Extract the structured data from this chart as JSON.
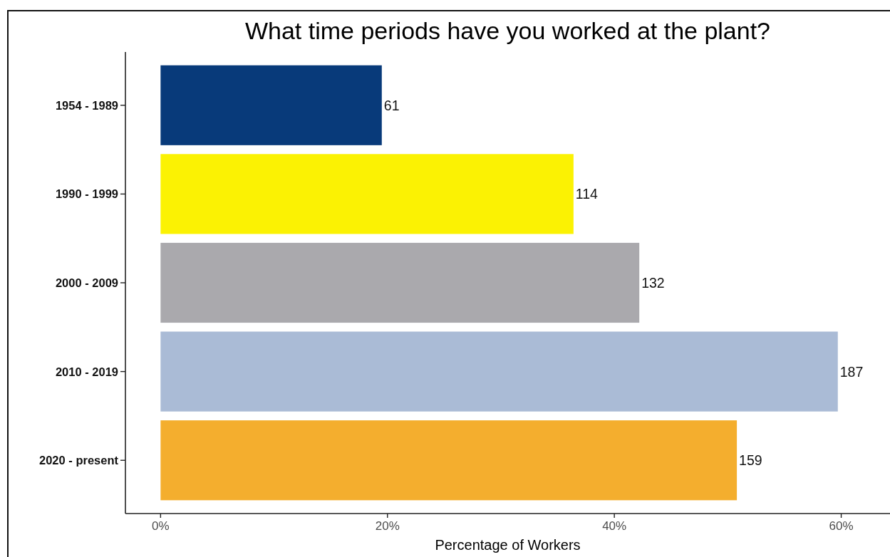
{
  "chart_data": {
    "type": "bar",
    "orientation": "horizontal",
    "title": "What time periods have you worked at the plant?",
    "xlabel": "Percentage of Workers",
    "categories": [
      "1954 - 1989",
      "1990 - 1999",
      "2000 - 2009",
      "2010 - 2019",
      "2020 - present"
    ],
    "values": [
      19.5,
      36.4,
      42.2,
      59.7,
      50.8
    ],
    "colors": [
      "#083a7a",
      "#fbf203",
      "#aaa9ad",
      "#aabbd6",
      "#f4ae2e"
    ],
    "annotations": [
      {
        "text": "61",
        "x": 19.5,
        "y": "1954 - 1989"
      },
      {
        "text": "114",
        "x": 36.4,
        "y": "1990 - 1999"
      },
      {
        "text": "132",
        "x": 42.2,
        "y": "2000 - 2009"
      },
      {
        "text": "187",
        "x": 59.7,
        "y": "2010 - 2019"
      },
      {
        "text": "159",
        "x": 50.8,
        "y": "2020 - present"
      }
    ],
    "xlim": [
      -3.1,
      64.3
    ],
    "xticks": [
      {
        "value": 0,
        "label": "0%"
      },
      {
        "value": 20,
        "label": "20%"
      },
      {
        "value": 40,
        "label": "40%"
      },
      {
        "value": 60,
        "label": "60%"
      }
    ]
  }
}
